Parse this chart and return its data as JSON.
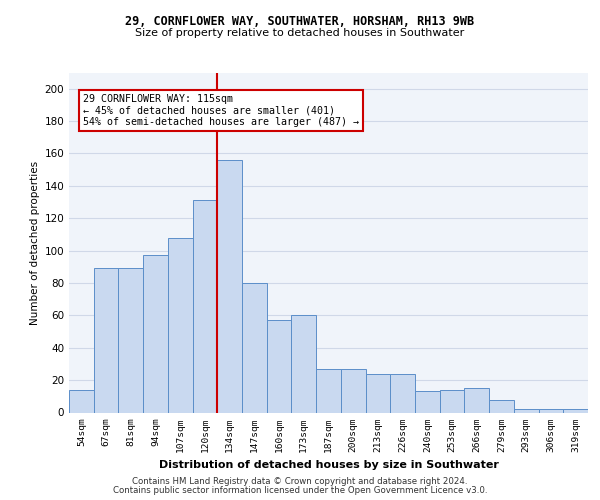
{
  "title1": "29, CORNFLOWER WAY, SOUTHWATER, HORSHAM, RH13 9WB",
  "title2": "Size of property relative to detached houses in Southwater",
  "xlabel": "Distribution of detached houses by size in Southwater",
  "ylabel": "Number of detached properties",
  "categories": [
    "54sqm",
    "67sqm",
    "81sqm",
    "94sqm",
    "107sqm",
    "120sqm",
    "134sqm",
    "147sqm",
    "160sqm",
    "173sqm",
    "187sqm",
    "200sqm",
    "213sqm",
    "226sqm",
    "240sqm",
    "253sqm",
    "266sqm",
    "279sqm",
    "293sqm",
    "306sqm",
    "319sqm"
  ],
  "values": [
    14,
    89,
    89,
    97,
    108,
    131,
    156,
    80,
    57,
    60,
    27,
    27,
    24,
    24,
    13,
    14,
    15,
    8,
    2,
    2,
    2
  ],
  "bar_color": "#c9d9f0",
  "bar_edge_color": "#5b8ec9",
  "vline_x": 5.5,
  "vline_color": "#cc0000",
  "annotation_text": "29 CORNFLOWER WAY: 115sqm\n← 45% of detached houses are smaller (401)\n54% of semi-detached houses are larger (487) →",
  "annotation_box_color": "#ffffff",
  "annotation_box_edge": "#cc0000",
  "footer1": "Contains HM Land Registry data © Crown copyright and database right 2024.",
  "footer2": "Contains public sector information licensed under the Open Government Licence v3.0.",
  "ylim": [
    0,
    210
  ],
  "yticks": [
    0,
    20,
    40,
    60,
    80,
    100,
    120,
    140,
    160,
    180,
    200
  ],
  "grid_color": "#d0d8e8",
  "bg_color": "#f0f4fa"
}
